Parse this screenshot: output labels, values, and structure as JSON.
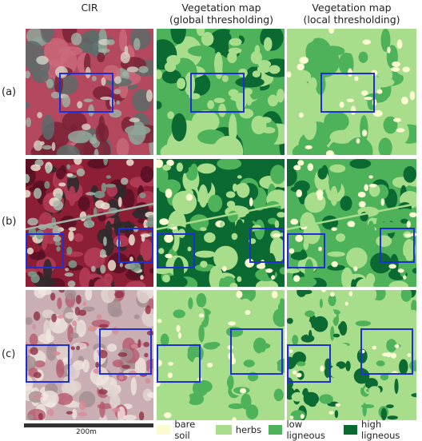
{
  "headers": {
    "cir": "CIR",
    "global": "Vegetation map\n(global thresholding)",
    "local": "Vegetation map\n(local thresholding)"
  },
  "rows": [
    {
      "label": "(a)"
    },
    {
      "label": "(b)"
    },
    {
      "label": "(c)"
    }
  ],
  "scale": {
    "label": "200m"
  },
  "legend": [
    {
      "label": "bare soil",
      "color": "#fbfbd2"
    },
    {
      "label": "herbs",
      "color": "#a8dd8c"
    },
    {
      "label": "low ligneous",
      "color": "#4eb25a"
    },
    {
      "label": "high ligneous",
      "color": "#0a6a32"
    }
  ],
  "colors": {
    "roi": "#1f2fd6"
  }
}
